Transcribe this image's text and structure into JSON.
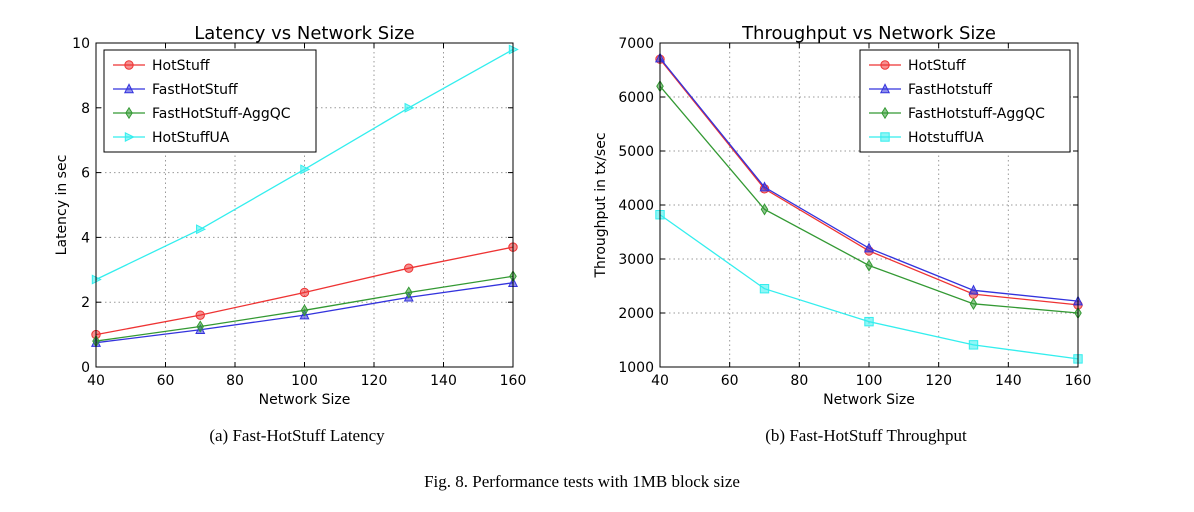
{
  "figure_caption": "Fig. 8.  Performance tests with 1MB block size",
  "chart_data": [
    {
      "type": "line",
      "title": "Latency vs Network Size",
      "caption": "(a) Fast-HotStuff Latency",
      "xlabel": "Network Size",
      "ylabel": "Latency in sec",
      "xlim": [
        40,
        160
      ],
      "ylim": [
        0,
        10
      ],
      "x": [
        40,
        70,
        100,
        130,
        160
      ],
      "xticks": [
        40,
        60,
        80,
        100,
        120,
        140,
        160
      ],
      "yticks": [
        0,
        2,
        4,
        6,
        8,
        10
      ],
      "grid": true,
      "legend_position": "top-left",
      "series": [
        {
          "name": "HotStuff",
          "values": [
            1.0,
            1.6,
            2.3,
            3.05,
            3.7
          ],
          "color": "#ee3333",
          "marker": "circle"
        },
        {
          "name": "FastHotStuff",
          "values": [
            0.75,
            1.15,
            1.6,
            2.15,
            2.6
          ],
          "color": "#3333dd",
          "marker": "triangle-up"
        },
        {
          "name": "FastHotStuff-AggQC",
          "values": [
            0.8,
            1.25,
            1.75,
            2.3,
            2.8
          ],
          "color": "#339933",
          "marker": "diamond"
        },
        {
          "name": "HotStuffUA",
          "values": [
            2.7,
            4.25,
            6.1,
            8.0,
            9.8
          ],
          "color": "#33eeee",
          "marker": "triangle-right"
        }
      ]
    },
    {
      "type": "line",
      "title": "Throughput vs Network Size",
      "caption": "(b) Fast-HotStuff Throughput",
      "xlabel": "Network Size",
      "ylabel": "Throughput in tx/sec",
      "xlim": [
        40,
        160
      ],
      "ylim": [
        1000,
        7000
      ],
      "x": [
        40,
        70,
        100,
        130,
        160
      ],
      "xticks": [
        40,
        60,
        80,
        100,
        120,
        140,
        160
      ],
      "yticks": [
        1000,
        2000,
        3000,
        4000,
        5000,
        6000,
        7000
      ],
      "grid": true,
      "legend_position": "top-right",
      "series": [
        {
          "name": "HotStuff",
          "values": [
            6700,
            4300,
            3150,
            2350,
            2150
          ],
          "color": "#ee3333",
          "marker": "circle"
        },
        {
          "name": "FastHotstuff",
          "values": [
            6720,
            4330,
            3200,
            2420,
            2220
          ],
          "color": "#3333dd",
          "marker": "triangle-up"
        },
        {
          "name": "FastHotstuff-AggQC",
          "values": [
            6200,
            3920,
            2880,
            2170,
            2000
          ],
          "color": "#339933",
          "marker": "diamond"
        },
        {
          "name": "HotstuffUA",
          "values": [
            3820,
            2450,
            1840,
            1410,
            1150
          ],
          "color": "#33eeee",
          "marker": "square"
        }
      ]
    }
  ]
}
